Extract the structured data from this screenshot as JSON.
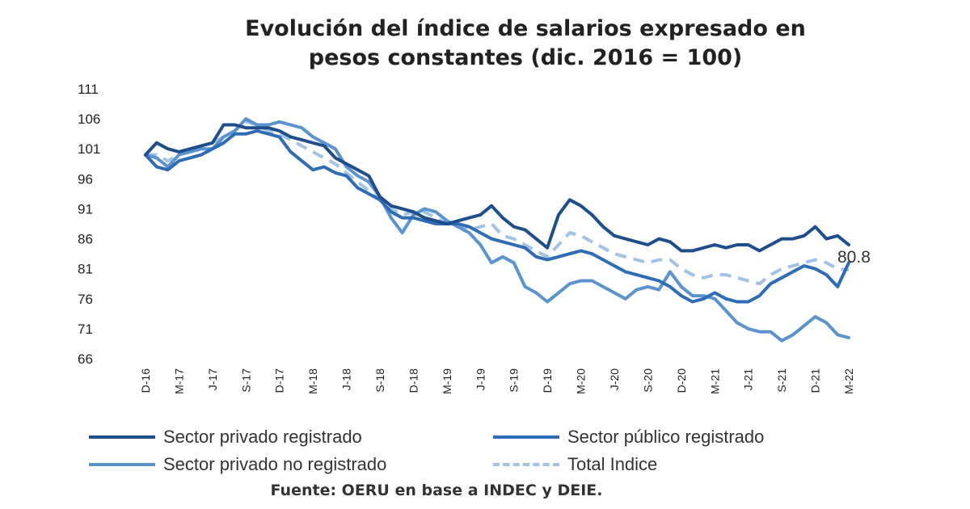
{
  "title_line1": "Evolución del índice de salarios expresado en",
  "title_line2": "pesos constantes (dic. 2016 = 100)",
  "source": "Fuente: OERU en base a INDEC y DEIE.",
  "chart_data": {
    "type": "line",
    "title": "Evolución del índice de salarios expresado en pesos constantes (dic. 2016 = 100)",
    "xlabel": "",
    "ylabel": "",
    "ylim": [
      66,
      111
    ],
    "yticks": [
      111,
      106,
      101,
      96,
      91,
      86,
      81,
      76,
      71,
      66
    ],
    "x": [
      "D-16",
      "E-17",
      "F-17",
      "M-17",
      "A-17",
      "M-17",
      "J-17",
      "J-17",
      "A-17",
      "S-17",
      "O-17",
      "N-17",
      "D-17",
      "E-18",
      "F-18",
      "M-18",
      "A-18",
      "M-18",
      "J-18",
      "J-18",
      "A-18",
      "S-18",
      "O-18",
      "N-18",
      "D-18",
      "E-19",
      "F-19",
      "M-19",
      "A-19",
      "M-19",
      "J-19",
      "J-19",
      "A-19",
      "S-19",
      "O-19",
      "N-19",
      "D-19",
      "E-20",
      "F-20",
      "M-20",
      "A-20",
      "M-20",
      "J-20",
      "J-20",
      "A-20",
      "S-20",
      "O-20",
      "N-20",
      "D-20",
      "E-21",
      "F-21",
      "M-21",
      "A-21",
      "M-21",
      "J-21",
      "J-21",
      "A-21",
      "S-21",
      "O-21",
      "N-21",
      "D-21",
      "E-22",
      "F-22",
      "M-22"
    ],
    "xtick_labels": [
      "D-16",
      "M-17",
      "J-17",
      "S-17",
      "D-17",
      "M-18",
      "J-18",
      "S-18",
      "D-18",
      "M-19",
      "J-19",
      "S-19",
      "D-19",
      "M-20",
      "J-20",
      "S-20",
      "D-20",
      "M-21",
      "J-21",
      "S-21",
      "D-21",
      "M-22"
    ],
    "grid": false,
    "legend_position": "bottom",
    "series": [
      {
        "name": "Sector privado registrado",
        "color": "#1f4e8c",
        "dash": "solid",
        "values": [
          100,
          102,
          101,
          100.5,
          101,
          101.5,
          102,
          105,
          105,
          104.5,
          104.5,
          104.5,
          104,
          103,
          102.5,
          102,
          101.5,
          99.5,
          98.5,
          97.5,
          96.5,
          93,
          91.5,
          91,
          90.5,
          89.5,
          89,
          88.5,
          89,
          89.5,
          90,
          91.5,
          89.5,
          88,
          87.5,
          86,
          84.5,
          90,
          92.5,
          91.5,
          90,
          88,
          86.5,
          86,
          85.5,
          85,
          86,
          85.5,
          84,
          84,
          84.5,
          85,
          84.5,
          85,
          85,
          84,
          85,
          86,
          86,
          86.5,
          88,
          86,
          86.5,
          85
        ]
      },
      {
        "name": "Sector público registrado",
        "color": "#2e6cb5",
        "dash": "solid",
        "values": [
          100,
          98,
          97.5,
          99,
          99.5,
          100,
          101,
          102,
          103.5,
          103.5,
          104,
          103.5,
          103,
          100.5,
          99,
          97.5,
          98,
          97,
          96.5,
          94.5,
          93.5,
          92.5,
          90.5,
          89.5,
          89.5,
          89,
          88.5,
          88.5,
          88.5,
          88,
          87,
          86,
          85.5,
          85,
          84.5,
          83,
          82.5,
          83,
          83.5,
          84,
          83.5,
          82.5,
          81.5,
          80.5,
          80,
          79.5,
          79,
          78,
          76.5,
          75.5,
          76,
          77,
          76,
          75.5,
          75.5,
          76.5,
          78.5,
          79.5,
          80.5,
          81.5,
          81,
          80,
          78,
          82
        ]
      },
      {
        "name": "Sector privado no registrado",
        "color": "#5b93cf",
        "dash": "solid",
        "values": [
          100,
          99.5,
          98,
          100,
          100.5,
          101,
          101,
          103,
          104,
          106,
          105,
          105,
          105.5,
          105,
          104.5,
          103,
          102,
          101,
          98,
          96.5,
          95.5,
          93,
          89.5,
          87,
          90,
          91,
          90.5,
          89,
          88,
          87,
          85,
          82,
          83,
          82,
          78,
          77,
          75.5,
          77,
          78.5,
          79,
          79,
          78,
          77,
          76,
          77.5,
          78,
          77.5,
          80.5,
          78,
          76.5,
          76.5,
          76,
          74,
          72,
          71,
          70.5,
          70.5,
          69,
          70,
          71.5,
          73,
          72,
          70,
          69.5
        ]
      },
      {
        "name": "Total Indice",
        "color": "#a3c3e6",
        "dash": "dashed",
        "values": [
          100,
          100,
          99,
          100,
          101,
          101.5,
          102,
          103,
          104,
          105.5,
          105,
          104,
          103.5,
          102.5,
          101.5,
          100.5,
          99.5,
          98.5,
          97,
          95.5,
          94,
          92.5,
          91,
          90,
          90.5,
          90.5,
          89.5,
          88.5,
          88,
          87.5,
          88,
          88.5,
          86.5,
          86,
          85,
          84,
          83,
          85,
          87,
          86.5,
          85.5,
          84.5,
          83.5,
          83,
          82.5,
          82,
          82.5,
          82.5,
          81,
          80,
          79.5,
          80,
          80,
          79.5,
          79,
          78.5,
          80,
          81,
          81.5,
          82,
          82.5,
          82,
          81,
          80.8
        ]
      }
    ],
    "annotations": [
      {
        "text": "80.8",
        "series": "Total Indice",
        "x": "M-22",
        "y": 80.8
      }
    ]
  }
}
